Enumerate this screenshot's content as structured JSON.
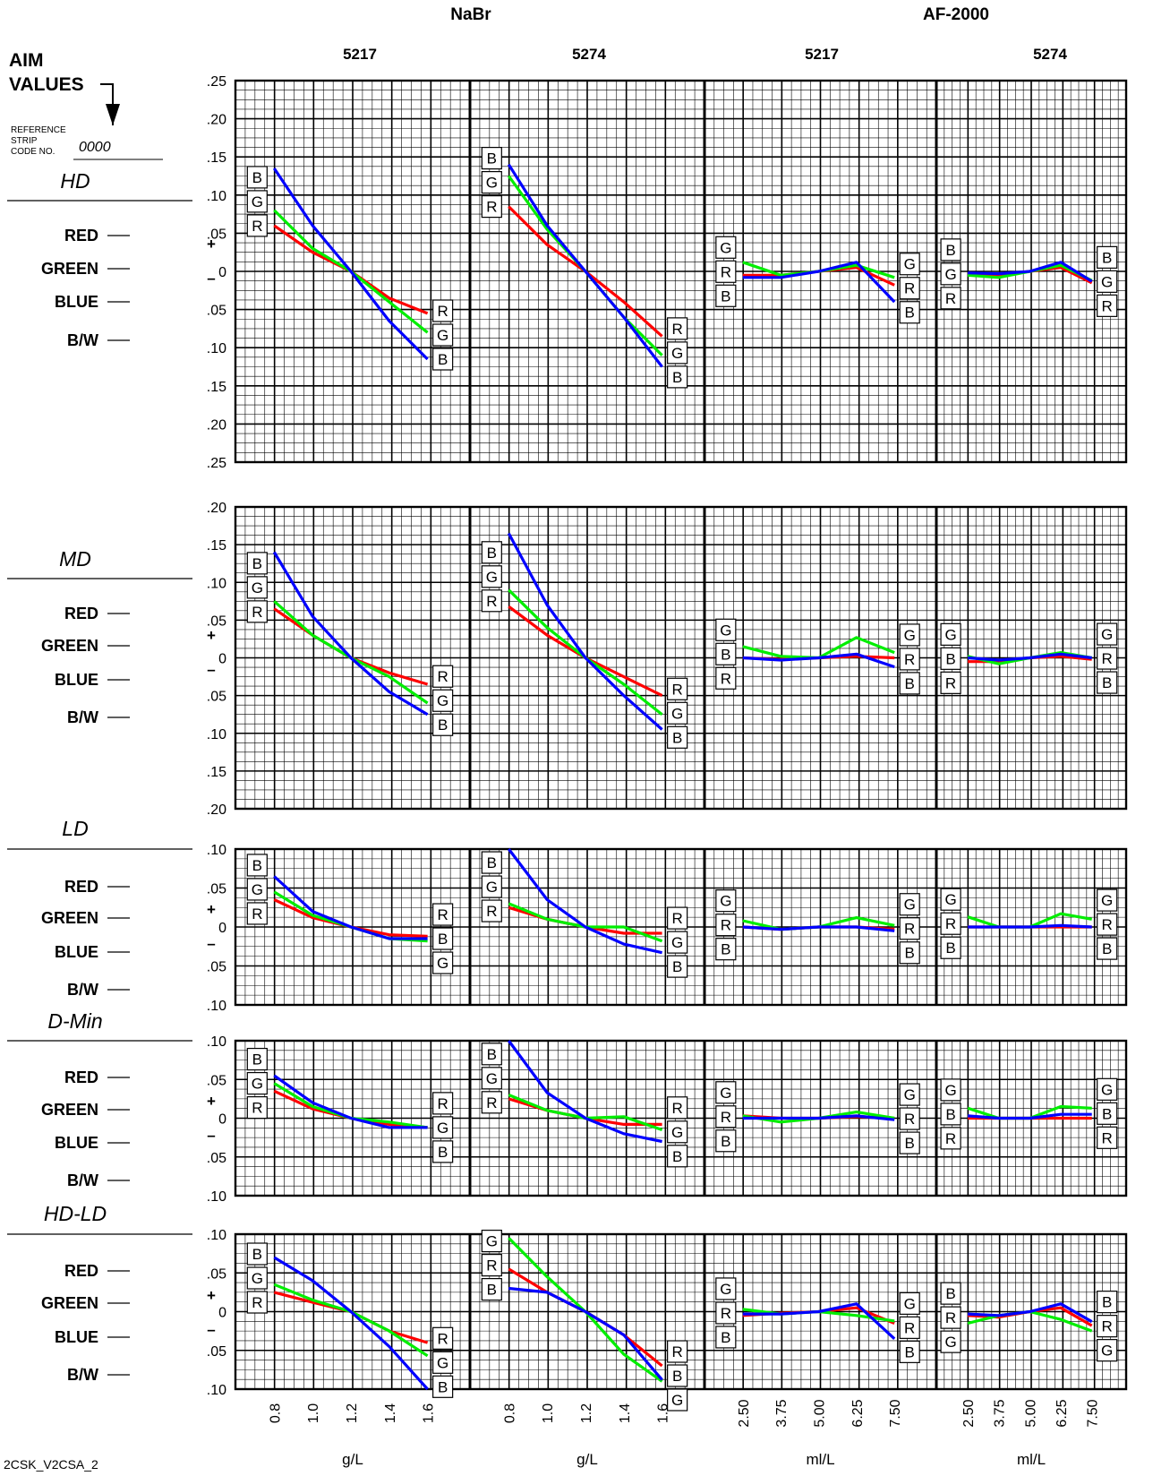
{
  "header": {
    "group_nabr": "NaBr",
    "group_af": "AF-2000",
    "columns": [
      "5217",
      "5274",
      "5217",
      "5274"
    ]
  },
  "aim": {
    "line1": "AIM",
    "line2": "VALUES",
    "ref1": "REFERENCE",
    "ref2": "STRIP",
    "ref3": "CODE NO.",
    "code": "0000"
  },
  "legend_labels": [
    "RED",
    "GREEN",
    "BLUE",
    "B/W"
  ],
  "plus_sign": "+",
  "minus_sign": "–",
  "colors": {
    "R": "#ff0000",
    "G": "#00ee00",
    "B": "#0000ff"
  },
  "x_tick_labels": {
    "nabr": [
      "0.8",
      "1.0",
      "1.2",
      "1.4",
      "1.6"
    ],
    "af": [
      "2.50",
      "3.75",
      "5.00",
      "6.25",
      "7.50"
    ]
  },
  "x_units": [
    "g/L",
    "g/L",
    "ml/L",
    "ml/L"
  ],
  "footer_code": "2CSK_V2CSA_2",
  "chart_data": {
    "type": "line",
    "x": {
      "nabr": [
        0.8,
        1.0,
        1.2,
        1.4,
        1.6
      ],
      "af": [
        2.5,
        3.75,
        5.0,
        6.25,
        7.5
      ]
    },
    "panels": [
      {
        "title": "HD",
        "ylim": [
          -0.25,
          0.25
        ],
        "y_tick_labels": [
          ".25",
          ".20",
          ".15",
          ".10",
          ".05",
          "0",
          ".05",
          ".10",
          ".15",
          ".20",
          ".25"
        ],
        "columns": [
          {
            "R": [
              0.06,
              0.025,
              0,
              -0.035,
              -0.055
            ],
            "G": [
              0.08,
              0.03,
              0,
              -0.04,
              -0.08
            ],
            "B": [
              0.135,
              0.06,
              0,
              -0.065,
              -0.115
            ],
            "left_labels": [
              "B",
              "G",
              "R"
            ],
            "right_labels": [
              "R",
              "G",
              "B"
            ]
          },
          {
            "R": [
              0.085,
              0.035,
              0,
              -0.04,
              -0.085
            ],
            "G": [
              0.125,
              0.055,
              0,
              -0.06,
              -0.11
            ],
            "B": [
              0.14,
              0.06,
              0,
              -0.06,
              -0.125
            ],
            "left_labels": [
              "B",
              "G",
              "R"
            ],
            "right_labels": [
              "R",
              "G",
              "B"
            ]
          },
          {
            "R": [
              -0.005,
              -0.005,
              0,
              0.005,
              -0.018
            ],
            "G": [
              0.012,
              -0.005,
              0,
              0.008,
              -0.008
            ],
            "B": [
              -0.008,
              -0.008,
              0,
              0.012,
              -0.04
            ],
            "left_labels": [
              "G",
              "R",
              "B"
            ],
            "right_labels": [
              "G",
              "R",
              "B"
            ]
          },
          {
            "R": [
              -0.003,
              -0.005,
              0,
              0.005,
              -0.015
            ],
            "G": [
              -0.005,
              -0.008,
              0,
              0.008,
              -0.012
            ],
            "B": [
              -0.002,
              -0.003,
              0,
              0.012,
              -0.013
            ],
            "left_labels": [
              "B",
              "G",
              "R"
            ],
            "right_labels": [
              "B",
              "G",
              "R"
            ]
          }
        ]
      },
      {
        "title": "MD",
        "ylim": [
          -0.2,
          0.2
        ],
        "y_tick_labels": [
          ".20",
          ".15",
          ".10",
          ".05",
          "0",
          ".05",
          ".10",
          ".15",
          ".20"
        ],
        "columns": [
          {
            "R": [
              0.065,
              0.03,
              0,
              -0.02,
              -0.035
            ],
            "G": [
              0.075,
              0.03,
              0,
              -0.025,
              -0.06
            ],
            "B": [
              0.14,
              0.055,
              0,
              -0.045,
              -0.075
            ],
            "left_labels": [
              "B",
              "G",
              "R"
            ],
            "right_labels": [
              "R",
              "G",
              "B"
            ]
          },
          {
            "R": [
              0.068,
              0.03,
              0,
              -0.025,
              -0.05
            ],
            "G": [
              0.09,
              0.04,
              0,
              -0.035,
              -0.075
            ],
            "B": [
              0.165,
              0.07,
              0,
              -0.05,
              -0.095
            ],
            "left_labels": [
              "B",
              "G",
              "R"
            ],
            "right_labels": [
              "R",
              "G",
              "B"
            ]
          },
          {
            "R": [
              0.0,
              -0.002,
              0,
              0.002,
              0.0
            ],
            "G": [
              0.015,
              0.002,
              0,
              0.027,
              0.007
            ],
            "B": [
              0.0,
              -0.003,
              0,
              0.005,
              -0.012
            ],
            "left_labels": [
              "G",
              "B",
              "R"
            ],
            "right_labels": [
              "G",
              "R",
              "B"
            ]
          },
          {
            "R": [
              -0.005,
              -0.005,
              0,
              0.002,
              -0.002
            ],
            "G": [
              0.002,
              -0.008,
              0,
              0.007,
              0.0
            ],
            "B": [
              0.0,
              -0.003,
              0,
              0.005,
              0.0
            ],
            "left_labels": [
              "G",
              "B",
              "R"
            ],
            "right_labels": [
              "G",
              "R",
              "B"
            ]
          }
        ]
      },
      {
        "title": "LD",
        "ylim": [
          -0.1,
          0.1
        ],
        "y_tick_labels": [
          ".10",
          ".05",
          "0",
          ".05",
          ".10"
        ],
        "columns": [
          {
            "R": [
              0.035,
              0.012,
              0,
              -0.01,
              -0.012
            ],
            "G": [
              0.045,
              0.015,
              0,
              -0.015,
              -0.018
            ],
            "B": [
              0.065,
              0.02,
              0,
              -0.015,
              -0.015
            ],
            "left_labels": [
              "B",
              "G",
              "R"
            ],
            "right_labels": [
              "R",
              "B",
              "G"
            ]
          },
          {
            "R": [
              0.025,
              0.01,
              0,
              -0.008,
              -0.008
            ],
            "G": [
              0.03,
              0.01,
              0,
              0.0,
              -0.018
            ],
            "B": [
              0.1,
              0.035,
              0,
              -0.022,
              -0.033
            ],
            "left_labels": [
              "B",
              "G",
              "R"
            ],
            "right_labels": [
              "R",
              "G",
              "B"
            ]
          },
          {
            "R": [
              0.0,
              -0.003,
              0,
              0.0,
              -0.003
            ],
            "G": [
              0.008,
              -0.003,
              0,
              0.012,
              0.002
            ],
            "B": [
              0.0,
              -0.003,
              0,
              0.0,
              -0.005
            ],
            "left_labels": [
              "G",
              "R",
              "B"
            ],
            "right_labels": [
              "G",
              "R",
              "B"
            ]
          },
          {
            "R": [
              0.0,
              0.0,
              0,
              0.0,
              0.0
            ],
            "G": [
              0.013,
              0.0,
              0,
              0.017,
              0.01
            ],
            "B": [
              0.0,
              0.0,
              0,
              0.002,
              0.0
            ],
            "left_labels": [
              "G",
              "R",
              "B"
            ],
            "right_labels": [
              "G",
              "R",
              "B"
            ]
          }
        ]
      },
      {
        "title": "D-Min",
        "ylim": [
          -0.1,
          0.1
        ],
        "y_tick_labels": [
          ".10",
          ".05",
          "0",
          ".05",
          ".10"
        ],
        "columns": [
          {
            "R": [
              0.035,
              0.012,
              0,
              -0.008,
              -0.012
            ],
            "G": [
              0.045,
              0.015,
              0,
              -0.005,
              -0.012
            ],
            "B": [
              0.055,
              0.02,
              0,
              -0.012,
              -0.012
            ],
            "left_labels": [
              "B",
              "G",
              "R"
            ],
            "right_labels": [
              "R",
              "G",
              "B"
            ]
          },
          {
            "R": [
              0.025,
              0.01,
              0,
              -0.008,
              -0.008
            ],
            "G": [
              0.03,
              0.01,
              0,
              0.002,
              -0.015
            ],
            "B": [
              0.1,
              0.033,
              0,
              -0.02,
              -0.03
            ],
            "left_labels": [
              "B",
              "G",
              "R"
            ],
            "right_labels": [
              "R",
              "G",
              "B"
            ]
          },
          {
            "R": [
              0.003,
              0.0,
              0,
              0.002,
              0.0
            ],
            "G": [
              0.003,
              -0.005,
              0,
              0.008,
              0.0
            ],
            "B": [
              0.0,
              0.0,
              0,
              0.003,
              -0.002
            ],
            "left_labels": [
              "G",
              "R",
              "B"
            ],
            "right_labels": [
              "G",
              "R",
              "B"
            ]
          },
          {
            "R": [
              0.0,
              0.0,
              0,
              0.0,
              0.0
            ],
            "G": [
              0.013,
              0.0,
              0,
              0.015,
              0.013
            ],
            "B": [
              0.003,
              0.0,
              0,
              0.005,
              0.005
            ],
            "left_labels": [
              "G",
              "B",
              "R"
            ],
            "right_labels": [
              "G",
              "B",
              "R"
            ]
          }
        ]
      },
      {
        "title": "HD-LD",
        "ylim": [
          -0.1,
          0.1
        ],
        "y_tick_labels": [
          ".10",
          ".05",
          "0",
          ".05",
          ".10"
        ],
        "columns": [
          {
            "R": [
              0.025,
              0.012,
              0,
              -0.025,
              -0.04
            ],
            "G": [
              0.035,
              0.015,
              0,
              -0.025,
              -0.057
            ],
            "B": [
              0.07,
              0.04,
              0,
              -0.045,
              -0.1
            ],
            "left_labels": [
              "B",
              "G",
              "R"
            ],
            "right_labels": [
              "R",
              "G",
              "B"
            ]
          },
          {
            "R": [
              0.055,
              0.025,
              0,
              -0.03,
              -0.07
            ],
            "G": [
              0.095,
              0.045,
              0,
              -0.055,
              -0.09
            ],
            "B": [
              0.03,
              0.025,
              0,
              -0.03,
              -0.088
            ],
            "left_labels": [
              "G",
              "R",
              "B"
            ],
            "right_labels": [
              "R",
              "B",
              "G"
            ]
          },
          {
            "R": [
              -0.005,
              -0.002,
              0,
              0.005,
              -0.015
            ],
            "G": [
              0.003,
              -0.003,
              0,
              -0.005,
              -0.012
            ],
            "B": [
              -0.003,
              -0.003,
              0,
              0.01,
              -0.035
            ],
            "left_labels": [
              "G",
              "R",
              "B"
            ],
            "right_labels": [
              "G",
              "R",
              "B"
            ]
          },
          {
            "R": [
              -0.005,
              -0.007,
              0,
              0.005,
              -0.018
            ],
            "G": [
              -0.015,
              -0.005,
              0,
              -0.01,
              -0.025
            ],
            "B": [
              -0.003,
              -0.005,
              0,
              0.01,
              -0.013
            ],
            "left_labels": [
              "B",
              "R",
              "G"
            ],
            "right_labels": [
              "B",
              "R",
              "G"
            ]
          }
        ]
      }
    ]
  }
}
